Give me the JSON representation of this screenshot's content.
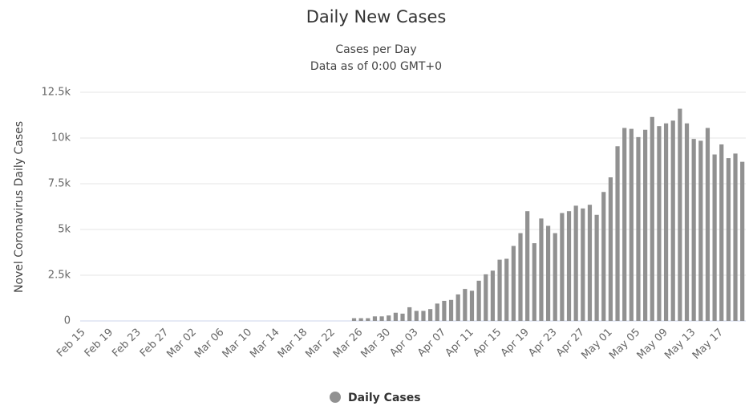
{
  "chart_data": {
    "type": "bar",
    "title": "Daily New Cases",
    "subtitle": [
      "Cases per Day",
      "Data as of 0:00 GMT+0"
    ],
    "y_axis_label": "Novel Coronavirus Daily Cases",
    "categories": [
      "Feb 15",
      null,
      null,
      null,
      "Feb 19",
      null,
      null,
      null,
      "Feb 23",
      null,
      null,
      null,
      "Feb 27",
      null,
      null,
      null,
      "Mar 02",
      null,
      null,
      null,
      "Mar 06",
      null,
      null,
      null,
      "Mar 10",
      null,
      null,
      null,
      "Mar 14",
      null,
      null,
      null,
      "Mar 18",
      null,
      null,
      null,
      "Mar 22",
      null,
      null,
      null,
      "Mar 26",
      null,
      null,
      null,
      "Mar 30",
      null,
      null,
      null,
      "Apr 03",
      null,
      null,
      null,
      "Apr 07",
      null,
      null,
      null,
      "Apr 11",
      null,
      null,
      null,
      "Apr 15",
      null,
      null,
      null,
      "Apr 19",
      null,
      null,
      null,
      "Apr 23",
      null,
      null,
      null,
      "Apr 27",
      null,
      null,
      null,
      "May 01",
      null,
      null,
      null,
      "May 05",
      null,
      null,
      null,
      "May 09",
      null,
      null,
      null,
      "May 13",
      null,
      null,
      null,
      "May 17",
      null,
      null,
      null
    ],
    "series": [
      {
        "name": "Daily Cases",
        "color": "#919191",
        "values": [
          0,
          0,
          0,
          0,
          0,
          0,
          0,
          0,
          0,
          0,
          0,
          0,
          0,
          0,
          0,
          0,
          0,
          0,
          0,
          0,
          0,
          0,
          0,
          0,
          0,
          0,
          0,
          0,
          0,
          0,
          0,
          0,
          0,
          0,
          0,
          0,
          0,
          0,
          0,
          150,
          150,
          150,
          250,
          250,
          300,
          450,
          400,
          750,
          550,
          550,
          650,
          950,
          1100,
          1150,
          1450,
          1750,
          1650,
          2200,
          2550,
          2750,
          3350,
          3400,
          4100,
          4800,
          6000,
          4250,
          5600,
          5200,
          4800,
          5900,
          6000,
          6300,
          6150,
          6350,
          5800,
          7050,
          7850,
          9550,
          10550,
          10500,
          10050,
          10450,
          11150,
          10650,
          10800,
          10950,
          11600,
          10800,
          9950,
          9850,
          10550,
          9100,
          9650,
          8900,
          9150,
          8700
        ]
      }
    ],
    "ylim": [
      0,
      12500
    ],
    "yticks": [
      0,
      {
        "value": 2500,
        "label": "2.5k"
      },
      {
        "value": 5000,
        "label": "5k"
      },
      {
        "value": 7500,
        "label": "7.5k"
      },
      {
        "value": 10000,
        "label": "10k"
      },
      {
        "value": 12500,
        "label": "12.5k"
      }
    ],
    "grid": true,
    "legend": "bottom"
  }
}
